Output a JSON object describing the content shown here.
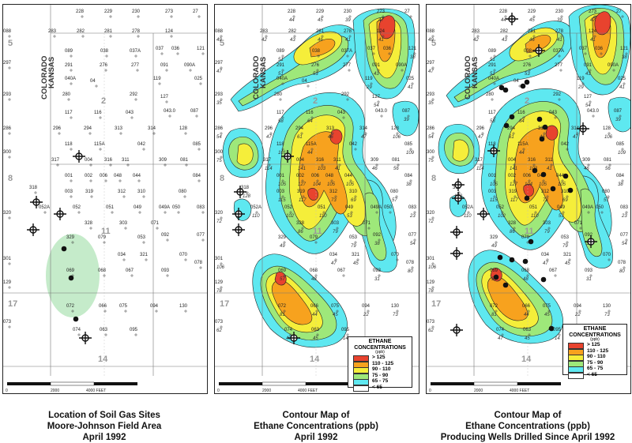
{
  "state_labels": {
    "colorado": "COLORADO",
    "kansas": "KANSAS"
  },
  "section_numbers": [
    "5",
    "2",
    "8",
    "11",
    "17",
    "14"
  ],
  "scale_labels": {
    "left": "0",
    "mid": "2000",
    "right": "4000 FEET"
  },
  "panels": [
    {
      "caption": [
        "Location of Soil Gas Sites",
        "Moore-Johnson Field Area",
        "April 1992"
      ]
    },
    {
      "caption": [
        "Contour Map of",
        "Ethane Concentrations (ppb)",
        "April 1992"
      ]
    },
    {
      "caption": [
        "Contour Map of",
        "Ethane Concentrations (ppb)",
        "Producing Wells Drilled Since April 1992"
      ]
    }
  ],
  "legend": {
    "title_line1": "ETHANE",
    "title_line2": "CONCENTRATIONS",
    "units": "(ppb)",
    "items": [
      {
        "label": "> 125",
        "color": "#e8432e"
      },
      {
        "label": "110 - 125",
        "color": "#f7a21e"
      },
      {
        "label": "90 - 110",
        "color": "#f5ee3a"
      },
      {
        "label": "75 - 90",
        "color": "#9ee87a"
      },
      {
        "label": "65 - 75",
        "color": "#5ee8f0"
      },
      {
        "label": "< 65",
        "color": "#ffffff"
      }
    ]
  },
  "site_ids": [
    "228",
    "229",
    "230",
    "273",
    "27",
    "283",
    "282",
    "281",
    "278",
    "124",
    "088",
    "089",
    "038",
    "037A",
    "037",
    "036",
    "121",
    "297",
    "291",
    "276",
    "277",
    "091",
    "090A",
    "040A",
    "04",
    "119",
    "025",
    "293",
    "280",
    "292",
    "127",
    "117",
    "116",
    "043",
    "043.0",
    "087",
    "286",
    "296",
    "294",
    "313",
    "314",
    "128",
    "118",
    "115A",
    "042",
    "085",
    "300",
    "317",
    "004",
    "316",
    "311",
    "309",
    "081",
    "001",
    "002",
    "006",
    "048",
    "044",
    "084",
    "318",
    "003",
    "319",
    "312",
    "310",
    "080",
    "052A",
    "052",
    "051",
    "049",
    "049A",
    "050",
    "083",
    "320",
    "328",
    "303",
    "071",
    "077",
    "329",
    "079",
    "053",
    "092",
    "301",
    "034",
    "321",
    "070",
    "078",
    "069",
    "068",
    "067",
    "093",
    "129",
    "072",
    "075",
    "066",
    "094",
    "130",
    "073",
    "074",
    "063",
    "095"
  ],
  "marker_ids_panel1": [
    "077",
    "078",
    "129"
  ]
}
